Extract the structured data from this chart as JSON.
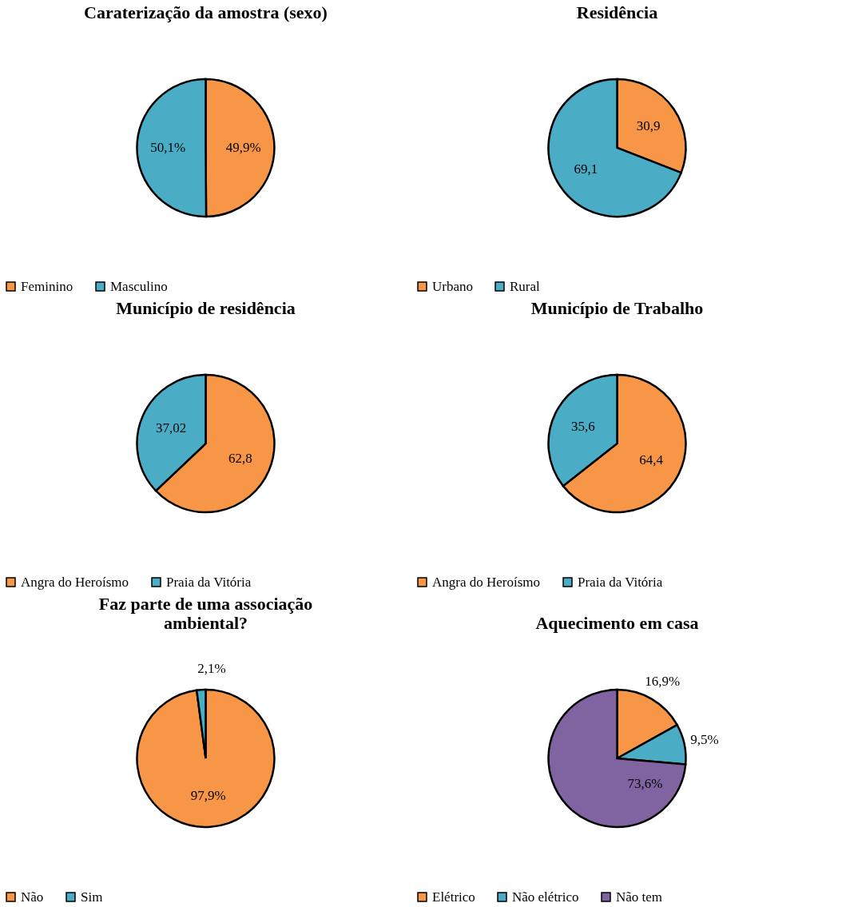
{
  "chart_data": [
    {
      "type": "pie",
      "title": "Caraterização da amostra (sexo)",
      "categories": [
        "Feminino",
        "Masculino"
      ],
      "values": [
        49.9,
        50.1
      ],
      "value_labels": [
        "49,9%",
        "50,1%"
      ],
      "colors": [
        "#f79646",
        "#4bacc6"
      ],
      "legend": "bottom"
    },
    {
      "type": "pie",
      "title": "Residência",
      "categories": [
        "Urbano",
        "Rural"
      ],
      "values": [
        30.9,
        69.1
      ],
      "value_labels": [
        "30,9",
        "69,1"
      ],
      "colors": [
        "#f79646",
        "#4bacc6"
      ],
      "legend": "bottom"
    },
    {
      "type": "pie",
      "title": "Município de residência",
      "categories": [
        "Angra do Heroísmo",
        "Praia da Vitória"
      ],
      "values": [
        62.8,
        37.02
      ],
      "value_labels": [
        "62,8",
        "37,02"
      ],
      "colors": [
        "#f79646",
        "#4bacc6"
      ],
      "legend": "bottom"
    },
    {
      "type": "pie",
      "title": "Município de Trabalho",
      "categories": [
        "Angra do Heroísmo",
        "Praia da Vitória"
      ],
      "values": [
        64.4,
        35.6
      ],
      "value_labels": [
        "64,4",
        "35,6"
      ],
      "colors": [
        "#f79646",
        "#4bacc6"
      ],
      "legend": "bottom"
    },
    {
      "type": "pie",
      "title": "Faz parte de uma associação\nambiental?",
      "categories": [
        "Não",
        "Sim"
      ],
      "values": [
        97.9,
        2.1
      ],
      "value_labels": [
        "97,9%",
        "2,1%"
      ],
      "colors": [
        "#f79646",
        "#4bacc6"
      ],
      "legend": "bottom"
    },
    {
      "type": "pie",
      "title": "Aquecimento em casa",
      "categories": [
        "Elétrico",
        "Não elétrico",
        "Não tem"
      ],
      "values": [
        16.9,
        9.5,
        73.6
      ],
      "value_labels": [
        "16,9%",
        "9,5%",
        "73,6%"
      ],
      "colors": [
        "#f79646",
        "#4bacc6",
        "#8064a2"
      ],
      "legend": "bottom"
    }
  ]
}
